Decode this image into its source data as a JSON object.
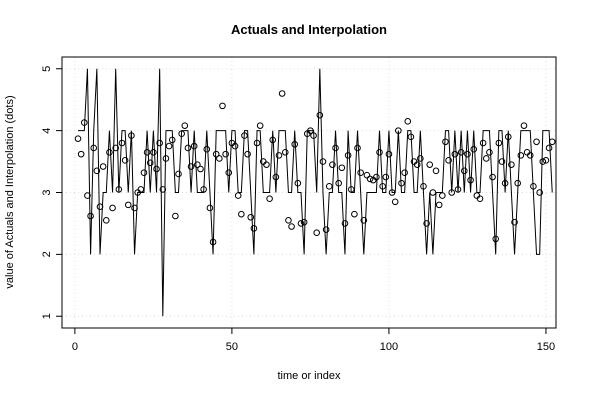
{
  "chart_data": {
    "type": "line",
    "title": "Actuals and Interpolation",
    "xlabel": "time or index",
    "ylabel": "value of Actuals and Interpolation (dots)",
    "xlim": [
      -4.1,
      153.2
    ],
    "ylim": [
      0.81,
      5.19
    ],
    "xticks": [
      0,
      50,
      100,
      150
    ],
    "yticks": [
      1,
      2,
      3,
      4,
      5
    ],
    "grid": true,
    "x": [
      1,
      2,
      3,
      4,
      5,
      6,
      7,
      8,
      9,
      10,
      11,
      12,
      13,
      14,
      15,
      16,
      17,
      18,
      19,
      20,
      21,
      22,
      23,
      24,
      25,
      26,
      27,
      28,
      29,
      30,
      31,
      32,
      33,
      34,
      35,
      36,
      37,
      38,
      39,
      40,
      41,
      42,
      43,
      44,
      45,
      46,
      47,
      48,
      49,
      50,
      51,
      52,
      53,
      54,
      55,
      56,
      57,
      58,
      59,
      60,
      61,
      62,
      63,
      64,
      65,
      66,
      67,
      68,
      69,
      70,
      71,
      72,
      73,
      74,
      75,
      76,
      77,
      78,
      79,
      80,
      81,
      82,
      83,
      84,
      85,
      86,
      87,
      88,
      89,
      90,
      91,
      92,
      93,
      94,
      95,
      96,
      97,
      98,
      99,
      100,
      101,
      102,
      103,
      104,
      105,
      106,
      107,
      108,
      109,
      110,
      111,
      112,
      113,
      114,
      115,
      116,
      117,
      118,
      119,
      120,
      121,
      122,
      123,
      124,
      125,
      126,
      127,
      128,
      129,
      130,
      131,
      132,
      133,
      134,
      135,
      136,
      137,
      138,
      139,
      140,
      141,
      142,
      143,
      144,
      145,
      146,
      147,
      148,
      149,
      150,
      151,
      152
    ],
    "series": [
      {
        "mark": "line",
        "color": "#000000",
        "values": [
          4,
          4,
          4,
          5,
          2,
          4,
          5,
          2,
          3,
          3,
          4,
          3,
          5,
          3,
          4,
          4,
          3,
          4,
          2,
          3,
          3,
          3,
          4,
          3,
          4,
          3,
          5,
          1,
          4,
          4,
          4,
          3,
          3,
          4,
          4,
          4,
          3,
          4,
          3,
          3,
          3,
          4,
          3,
          2,
          4,
          4,
          4,
          4,
          3,
          4,
          4,
          3,
          3,
          4,
          4,
          3,
          2,
          4,
          4,
          3,
          3,
          3,
          4,
          3,
          4,
          4,
          4,
          3,
          3,
          4,
          3,
          3,
          2,
          4,
          4,
          4,
          3,
          5,
          3,
          2,
          3,
          3,
          4,
          3,
          3,
          2,
          4,
          3,
          3,
          4,
          3,
          2,
          3,
          3,
          3,
          3,
          4,
          3,
          3,
          4,
          3,
          3,
          4,
          3,
          3,
          4,
          4,
          3,
          3,
          4,
          3,
          2,
          3,
          2,
          3,
          3,
          3,
          4,
          4,
          3,
          4,
          3,
          4,
          3,
          4,
          3,
          4,
          3,
          3,
          4,
          4,
          4,
          3,
          2,
          4,
          4,
          3,
          4,
          3,
          2,
          3,
          4,
          4,
          4,
          4,
          3,
          2,
          2,
          4,
          4,
          4,
          3
        ]
      },
      {
        "mark": "points",
        "color": "#000000",
        "values": [
          3.87,
          3.62,
          4.13,
          2.95,
          2.62,
          3.72,
          3.35,
          2.77,
          3.42,
          2.55,
          3.65,
          2.75,
          3.72,
          3.05,
          3.8,
          3.52,
          2.8,
          3.92,
          2.75,
          3.0,
          3.05,
          3.32,
          3.65,
          3.48,
          3.65,
          3.38,
          3.8,
          3.05,
          3.55,
          3.75,
          3.85,
          2.62,
          3.3,
          3.95,
          4.08,
          3.72,
          3.42,
          3.75,
          3.45,
          3.38,
          3.05,
          3.7,
          2.75,
          2.2,
          3.62,
          3.55,
          4.4,
          3.62,
          3.32,
          3.8,
          3.75,
          2.95,
          2.65,
          3.92,
          3.62,
          2.6,
          2.42,
          3.8,
          4.08,
          3.5,
          3.45,
          2.9,
          3.85,
          3.25,
          3.6,
          4.6,
          3.65,
          2.55,
          2.45,
          3.78,
          3.15,
          2.5,
          2.52,
          3.95,
          4.0,
          3.92,
          2.35,
          4.25,
          3.5,
          2.4,
          3.1,
          3.45,
          3.72,
          3.15,
          3.4,
          2.5,
          3.6,
          3.05,
          2.65,
          3.72,
          3.32,
          2.55,
          3.28,
          3.22,
          3.2,
          3.25,
          3.65,
          3.1,
          3.25,
          3.62,
          3.0,
          2.85,
          4.0,
          3.15,
          3.32,
          4.15,
          3.9,
          3.5,
          3.45,
          3.55,
          3.1,
          2.5,
          3.45,
          3.0,
          3.35,
          2.8,
          2.95,
          3.82,
          3.52,
          3.0,
          3.62,
          3.05,
          3.65,
          3.35,
          3.62,
          3.2,
          3.7,
          2.95,
          2.9,
          3.8,
          3.55,
          3.65,
          3.25,
          2.25,
          3.8,
          3.5,
          3.15,
          3.9,
          3.45,
          2.52,
          3.15,
          3.6,
          4.08,
          3.65,
          3.6,
          3.1,
          3.82,
          3.0,
          3.5,
          3.52,
          3.72,
          3.82
        ]
      }
    ]
  }
}
